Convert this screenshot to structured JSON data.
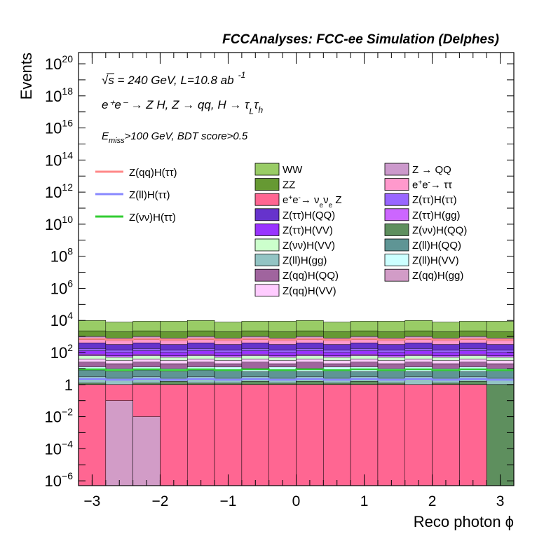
{
  "chart_data": {
    "type": "area",
    "title": "FCCAnalyses: FCC-ee Simulation (Delphes)",
    "xlabel": "Reco photon ϕ",
    "ylabel": "Events",
    "xlim": [
      -3.2,
      3.2
    ],
    "ylim_log10": [
      -6.3,
      20.7
    ],
    "yscale": "log",
    "xticks": [
      {
        "value": -3,
        "label": "−3"
      },
      {
        "value": -2,
        "label": "−2"
      },
      {
        "value": -1,
        "label": "−1"
      },
      {
        "value": 0,
        "label": "0"
      },
      {
        "value": 1,
        "label": "1"
      },
      {
        "value": 2,
        "label": "2"
      },
      {
        "value": 3,
        "label": "3"
      }
    ],
    "yticks": [
      {
        "exp": -6,
        "base": "10",
        "sup": "−6"
      },
      {
        "exp": -4,
        "base": "10",
        "sup": "−4"
      },
      {
        "exp": -2,
        "base": "10",
        "sup": "−2"
      },
      {
        "exp": 0,
        "base": "1",
        "sup": ""
      },
      {
        "exp": 2,
        "base": "10",
        "sup": "2"
      },
      {
        "exp": 4,
        "base": "10",
        "sup": "4"
      },
      {
        "exp": 6,
        "base": "10",
        "sup": "6"
      },
      {
        "exp": 8,
        "base": "10",
        "sup": "8"
      },
      {
        "exp": 10,
        "base": "10",
        "sup": "10"
      },
      {
        "exp": 12,
        "base": "10",
        "sup": "12"
      },
      {
        "exp": 14,
        "base": "10",
        "sup": "14"
      },
      {
        "exp": 16,
        "base": "10",
        "sup": "16"
      },
      {
        "exp": 18,
        "base": "10",
        "sup": "18"
      },
      {
        "exp": 20,
        "base": "10",
        "sup": "20"
      }
    ],
    "annotations": {
      "energy": "√s = 240 GeV, L=10.8 ab",
      "energy_sup": "-1",
      "process": "e⁺e⁻ → Z H, Z → qq, H → τ",
      "process_sub1": "L",
      "process_tau2": "τ",
      "process_sub2": "h",
      "cut_prefix": "E",
      "cut_sub": "miss",
      "cut_rest": ">100 GeV, BDT score>0.5"
    },
    "bin_edges": [
      -3.2,
      -2.8,
      -2.4,
      -2.0,
      -1.6,
      -1.2,
      -0.8,
      -0.4,
      0.0,
      0.4,
      0.8,
      1.2,
      1.6,
      2.0,
      2.4,
      2.8,
      3.2
    ],
    "stack_layers": [
      {
        "name": "Z(qq)H(gg)",
        "color": "#d29cc7",
        "log10_tops": [
          -6.3,
          -1.0,
          -2.0,
          -6.3,
          -6.3,
          -6.3,
          -6.3,
          -6.3,
          -6.3,
          -6.3,
          -6.3,
          -6.3,
          -6.3,
          -6.3,
          -6.3,
          -6.3
        ]
      },
      {
        "name": "e⁺e⁻→ ν_eν_e Z",
        "color": "#ff6692",
        "log10_tops": [
          0.0,
          0.0,
          0.0,
          0.0,
          0.0,
          0.0,
          0.0,
          0.0,
          0.0,
          0.0,
          0.0,
          0.0,
          0.0,
          0.0,
          0.0,
          -6.3
        ]
      },
      {
        "name": "Z(νν)H(QQ)",
        "color": "#5e8f5e",
        "log10_tops": [
          0.1,
          -0.9,
          0.1,
          0.2,
          0.1,
          0.1,
          0.2,
          0.1,
          0.2,
          0.1,
          0.2,
          0.1,
          -0.9,
          0.1,
          0.2,
          0.0
        ]
      },
      {
        "name": "Z(ll)H(gg)",
        "color": "#93c4c4",
        "log10_tops": [
          0.5,
          0.4,
          0.5,
          0.4,
          0.5,
          0.4,
          0.5,
          0.4,
          0.5,
          0.4,
          0.5,
          0.4,
          0.5,
          0.4,
          0.5,
          0.4
        ]
      },
      {
        "name": "Z(ll)H(QQ)",
        "color": "#5f9595",
        "log10_tops": [
          0.9,
          0.8,
          0.9,
          0.8,
          0.9,
          0.9,
          0.8,
          0.9,
          0.8,
          0.9,
          0.8,
          0.9,
          0.8,
          0.9,
          0.8,
          0.9
        ]
      },
      {
        "name": "Z(ll)H(VV)",
        "color": "#ccffff",
        "log10_tops": [
          1.1,
          1.0,
          1.1,
          1.0,
          1.1,
          1.1,
          1.0,
          1.1,
          1.0,
          1.1,
          1.1,
          1.0,
          1.1,
          1.0,
          1.1,
          1.0
        ]
      },
      {
        "name": "Z(qq)H(QQ)",
        "color": "#a0649e",
        "log10_tops": [
          1.4,
          1.3,
          1.4,
          1.3,
          1.4,
          1.3,
          1.4,
          1.3,
          1.4,
          1.3,
          1.4,
          1.3,
          1.4,
          1.3,
          1.4,
          1.3
        ]
      },
      {
        "name": "Z(qq)H(VV)",
        "color": "#ffccff",
        "log10_tops": [
          1.6,
          1.5,
          1.6,
          1.5,
          1.6,
          1.5,
          1.6,
          1.5,
          1.6,
          1.5,
          1.6,
          1.5,
          1.6,
          1.5,
          1.6,
          1.5
        ]
      },
      {
        "name": "Z(νν)H(VV)",
        "color": "#ccffcc",
        "log10_tops": [
          1.8,
          1.7,
          1.8,
          1.7,
          1.8,
          1.7,
          1.8,
          1.7,
          1.8,
          1.7,
          1.8,
          1.7,
          1.8,
          1.7,
          1.8,
          1.7
        ]
      },
      {
        "name": "Z(ττ)H(gg)",
        "color": "#cc66ff",
        "log10_tops": [
          1.9,
          1.8,
          1.9,
          1.8,
          1.9,
          1.8,
          1.9,
          1.8,
          1.9,
          1.8,
          1.9,
          1.8,
          1.9,
          1.8,
          1.9,
          1.8
        ]
      },
      {
        "name": "Z(ττ)H(VV)",
        "color": "#9933ff",
        "log10_tops": [
          2.1,
          2.0,
          2.1,
          2.0,
          2.1,
          2.0,
          2.1,
          2.0,
          2.1,
          2.0,
          2.1,
          2.0,
          2.1,
          2.0,
          2.1,
          2.0
        ]
      },
      {
        "name": "Z(ττ)H(ττ)",
        "color": "#9966ff",
        "log10_tops": [
          2.25,
          2.15,
          2.25,
          2.15,
          2.25,
          2.15,
          2.25,
          2.15,
          2.25,
          2.15,
          2.25,
          2.15,
          2.25,
          2.15,
          2.25,
          2.15
        ]
      },
      {
        "name": "Z(ττ)H(QQ)",
        "color": "#6633cc",
        "log10_tops": [
          2.6,
          2.5,
          2.6,
          2.5,
          2.6,
          2.5,
          2.6,
          2.5,
          2.6,
          2.5,
          2.6,
          2.5,
          2.6,
          2.5,
          2.6,
          2.5
        ]
      },
      {
        "name": "e⁺e⁻→ ττ",
        "color": "#ff99cc",
        "log10_tops": [
          2.8,
          2.75,
          2.8,
          2.75,
          2.8,
          2.75,
          2.8,
          2.75,
          2.8,
          2.75,
          2.8,
          2.75,
          2.8,
          2.75,
          2.8,
          2.75
        ]
      },
      {
        "name": "Z → QQ",
        "color": "#cc99cc",
        "log10_tops": [
          3.0,
          2.9,
          3.0,
          2.9,
          3.0,
          2.9,
          3.0,
          2.9,
          3.0,
          2.9,
          3.0,
          2.9,
          3.0,
          2.9,
          3.0,
          2.9
        ]
      },
      {
        "name": "ZZ",
        "color": "#669933",
        "log10_tops": [
          3.35,
          3.3,
          3.35,
          3.3,
          3.35,
          3.3,
          3.35,
          3.3,
          3.35,
          3.3,
          3.35,
          3.3,
          3.35,
          3.3,
          3.35,
          3.3
        ]
      },
      {
        "name": "WW",
        "color": "#99cc66",
        "log10_tops": [
          4.0,
          3.9,
          3.95,
          3.95,
          4.0,
          3.9,
          3.95,
          3.95,
          4.0,
          3.9,
          3.95,
          3.95,
          4.0,
          3.9,
          3.95,
          3.95
        ]
      }
    ],
    "signal_lines": [
      {
        "name": "Z(qq)H(ττ)",
        "color": "#ff8888",
        "log10_values": [
          2.85,
          2.8,
          2.85,
          2.8,
          2.85,
          2.8,
          2.85,
          2.8,
          2.85,
          2.8,
          2.85,
          2.8,
          2.85,
          2.8,
          2.85,
          2.8
        ]
      },
      {
        "name": "Z(ll)H(ττ)",
        "color": "#8888ff",
        "log10_values": [
          0.35,
          0.3,
          0.35,
          0.3,
          0.35,
          0.3,
          0.35,
          0.3,
          0.35,
          0.3,
          0.35,
          0.3,
          0.35,
          0.3,
          0.35,
          0.3
        ]
      },
      {
        "name": "Z(νν)H(ττ)",
        "color": "#33cc33",
        "log10_values": [
          0.95,
          0.9,
          0.95,
          0.9,
          0.95,
          0.9,
          0.95,
          0.9,
          0.95,
          0.9,
          0.95,
          0.9,
          0.95,
          0.9,
          0.95,
          0.9
        ]
      }
    ],
    "legend": {
      "signals": [
        "Z(qq)H(ττ)",
        "Z(ll)H(ττ)",
        "Z(νν)H(ττ)"
      ],
      "col1": [
        "WW",
        "ZZ",
        "e⁺e⁻→ ν_eν_e Z",
        "Z(ττ)H(QQ)",
        "Z(ττ)H(VV)",
        "Z(νν)H(VV)",
        "Z(ll)H(gg)",
        "Z(qq)H(QQ)",
        "Z(qq)H(VV)"
      ],
      "col2": [
        "Z → QQ",
        "e⁺e⁻→ ττ",
        "Z(ττ)H(ττ)",
        "Z(ττ)H(gg)",
        "Z(νν)H(QQ)",
        "Z(ll)H(QQ)",
        "Z(ll)H(VV)",
        "Z(qq)H(gg)"
      ]
    },
    "legend_labels_html": {
      "e⁺e⁻→ ν_eν_e Z": "e<tspan baseline-shift='super' font-size='10'>+</tspan>e<tspan baseline-shift='super' font-size='10'>-</tspan>→ ν<tspan baseline-shift='sub' font-size='10'>e</tspan>ν<tspan baseline-shift='sub' font-size='10'>e</tspan> Z",
      "e⁺e⁻→ ττ": "e<tspan baseline-shift='super' font-size='10'>+</tspan>e<tspan baseline-shift='super' font-size='10'>-</tspan>→ ττ"
    }
  }
}
